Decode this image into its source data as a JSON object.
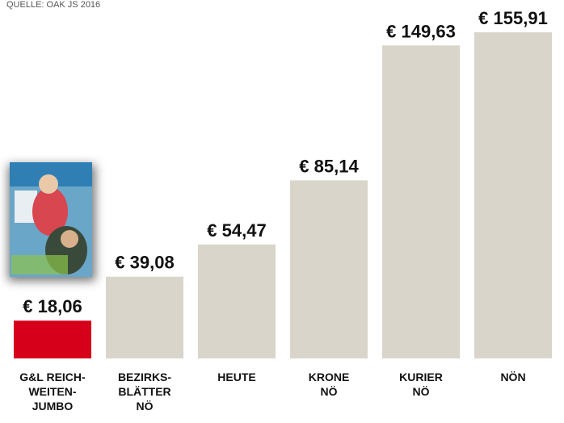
{
  "chart_data": {
    "type": "bar",
    "source": "QUELLE: OAK JS 2016",
    "categories": [
      "G&L REICH-\nWEITEN-\nJUMBO",
      "BEZIRKS-\nBLÄTTER\nNÖ",
      "HEUTE",
      "KRONE\nNÖ",
      "KURIER\nNÖ",
      "NÖN"
    ],
    "values": [
      18.06,
      39.08,
      54.47,
      85.14,
      149.63,
      155.91
    ],
    "value_labels": [
      "€ 18,06",
      "€ 39,08",
      "€ 54,47",
      "€ 85,14",
      "€ 149,63",
      "€ 155,91"
    ],
    "colors": [
      "#d7001a",
      "#d9d5cb",
      "#d9d5cb",
      "#d9d5cb",
      "#d9d5cb",
      "#d9d5cb"
    ]
  }
}
